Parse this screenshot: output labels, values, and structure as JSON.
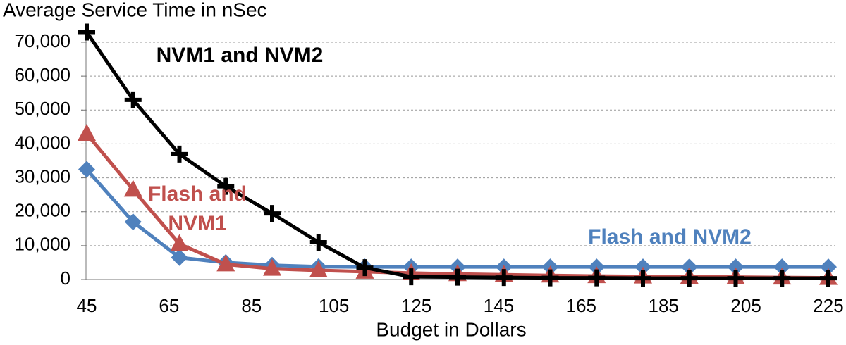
{
  "chart_data": {
    "type": "line",
    "title": "Average Service Time in nSec",
    "x_label": "Budget in Dollars",
    "x": [
      45,
      56.25,
      67.5,
      78.75,
      90,
      101.25,
      112.5,
      123.75,
      135,
      146.25,
      157.5,
      168.75,
      180,
      191.25,
      202.5,
      213.75,
      225
    ],
    "series": [
      {
        "name": "Flash and NVM2",
        "color": "#4f81bd",
        "marker": "diamond",
        "values": [
          32500,
          17000,
          6500,
          5000,
          4200,
          3800,
          3700,
          3700,
          3700,
          3700,
          3700,
          3700,
          3700,
          3700,
          3700,
          3700,
          3700
        ]
      },
      {
        "name": "Flash and NVM1",
        "color": "#c0504d",
        "marker": "triangle",
        "values": [
          43000,
          26500,
          10500,
          4500,
          3200,
          2700,
          2300,
          1900,
          1600,
          1400,
          1200,
          1000,
          900,
          800,
          700,
          600,
          500
        ]
      },
      {
        "name": "NVM1 and NVM2",
        "color": "#000000",
        "marker": "plus",
        "values": [
          73000,
          53000,
          37000,
          27500,
          19500,
          11000,
          3500,
          800,
          700,
          600,
          500,
          500,
          400,
          400,
          400,
          400,
          400
        ]
      }
    ],
    "xlim": [
      45,
      225
    ],
    "xticks": [
      45,
      65,
      85,
      105,
      125,
      145,
      165,
      185,
      205,
      225
    ],
    "ylim": [
      0,
      70000
    ],
    "yticks": [
      0,
      {
        "value": 10000,
        "label": "10,000"
      },
      {
        "value": 20000,
        "label": "20,000"
      },
      {
        "value": 30000,
        "label": "30,000"
      },
      {
        "value": 40000,
        "label": "40,000"
      },
      {
        "value": 50000,
        "label": "50,000"
      },
      {
        "value": 60000,
        "label": "60,000"
      },
      {
        "value": 70000,
        "label": "70,000"
      }
    ],
    "grid": true
  }
}
